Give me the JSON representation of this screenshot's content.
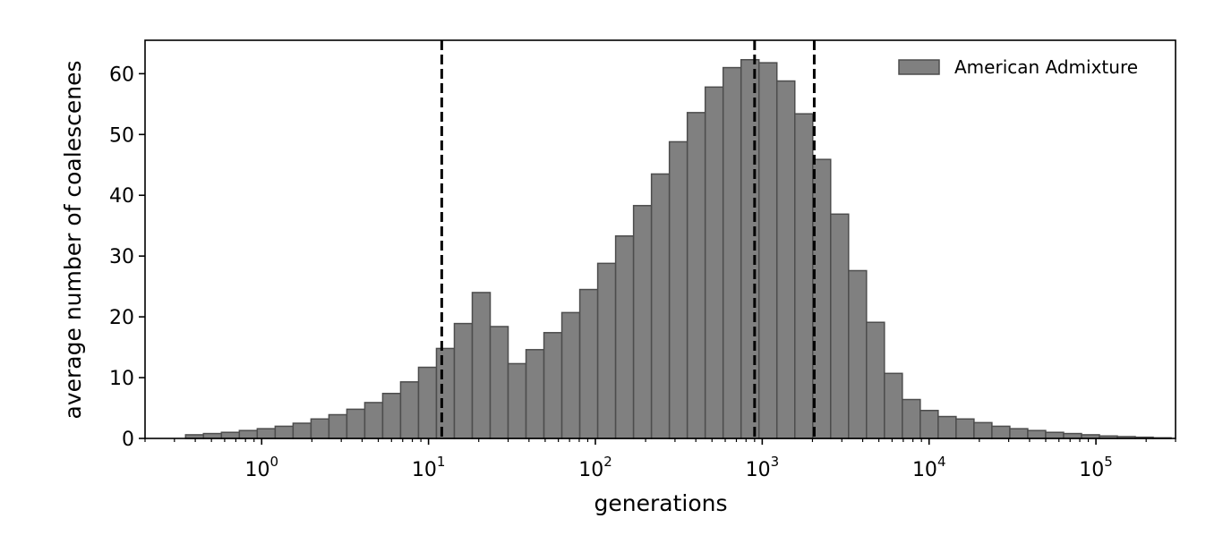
{
  "chart_data": {
    "type": "bar",
    "xlabel": "generations",
    "ylabel": "average number of coalescenes",
    "xscale": "log",
    "xlim": [
      0.2,
      300000
    ],
    "ylim": [
      0,
      65.5
    ],
    "grid": false,
    "legend_position": "top-right",
    "x_tick_labels": [
      {
        "base": "10",
        "exp": "0",
        "value": 1
      },
      {
        "base": "10",
        "exp": "1",
        "value": 10
      },
      {
        "base": "10",
        "exp": "2",
        "value": 100
      },
      {
        "base": "10",
        "exp": "3",
        "value": 1000
      },
      {
        "base": "10",
        "exp": "4",
        "value": 10000
      },
      {
        "base": "10",
        "exp": "5",
        "value": 100000
      }
    ],
    "y_ticks": [
      0,
      10,
      20,
      30,
      40,
      50,
      60
    ],
    "y_tick_labels": [
      "0",
      "10",
      "20",
      "30",
      "40",
      "50",
      "60"
    ],
    "vlines": [
      12,
      900,
      2050
    ],
    "series": [
      {
        "name": "American Admixture",
        "color": "#808080",
        "edge_color": "#4d4d4d",
        "bin_edges": [
          0.35,
          0.448,
          0.574,
          0.735,
          0.941,
          1.205,
          1.543,
          1.976,
          2.53,
          3.24,
          4.149,
          5.313,
          6.803,
          8.712,
          11.156,
          14.285,
          18.293,
          23.425,
          29.996,
          38.411,
          49.186,
          62.984,
          80.653,
          103.279,
          132.251,
          169.352,
          216.86,
          277.696,
          355.598,
          455.353,
          583.093,
          746.667,
          956.13,
          1224.35,
          1567.81,
          2007.63,
          2570.82,
          3292.01,
          4215.5,
          5398.1,
          6912.4,
          8851.5,
          11334.6,
          14514.3,
          18586.0,
          23799.9,
          30476.4,
          39026.1,
          49974.2,
          63993.4,
          81945.4,
          104933.5,
          134370.0,
          172064.0,
          220332.0,
          282141.0
        ],
        "values": [
          0.6,
          0.8,
          1.0,
          1.3,
          1.6,
          2.0,
          2.5,
          3.2,
          3.9,
          4.8,
          5.9,
          7.4,
          9.3,
          11.7,
          14.8,
          18.9,
          24.0,
          18.4,
          12.3,
          14.6,
          17.4,
          20.7,
          24.5,
          28.8,
          33.3,
          38.3,
          43.5,
          48.8,
          53.6,
          57.8,
          61.0,
          62.3,
          61.8,
          58.8,
          53.4,
          45.9,
          36.9,
          27.6,
          19.1,
          10.7,
          6.4,
          4.6,
          3.6,
          3.2,
          2.6,
          2.0,
          1.6,
          1.3,
          1.0,
          0.8,
          0.6,
          0.4,
          0.3,
          0.2,
          0.1
        ]
      }
    ]
  }
}
